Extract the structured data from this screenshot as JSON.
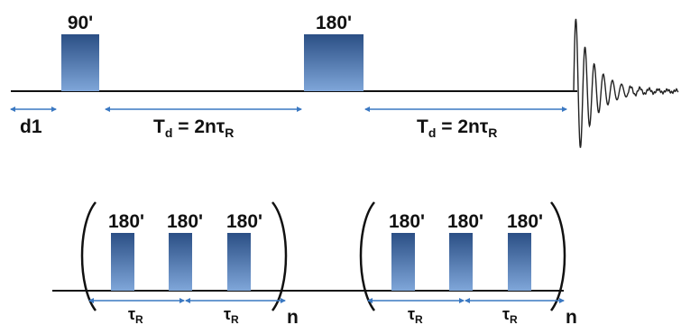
{
  "colors": {
    "baseline": "#111111",
    "pulse_top": "#2b4f85",
    "pulse_bottom": "#7fa6d9",
    "arrow": "#3a78c2",
    "fid": "#222222"
  },
  "top_sequence": {
    "pulse_90_label": "90'",
    "pulse_180_label": "180'",
    "d1_label": "d1",
    "delay_1": {
      "main": "T",
      "sub1": "d",
      "mid": " = 2nτ",
      "sub2": "R"
    },
    "delay_2": {
      "main": "T",
      "sub1": "d",
      "mid": " = 2nτ",
      "sub2": "R"
    }
  },
  "bottom_sequences": [
    {
      "pulse_labels": [
        "180'",
        "180'",
        "180'"
      ],
      "tau_labels": [
        {
          "main": "τ",
          "sub": "R"
        },
        {
          "main": "τ",
          "sub": "R"
        }
      ],
      "repeat_label": "n"
    },
    {
      "pulse_labels": [
        "180'",
        "180'",
        "180'"
      ],
      "tau_labels": [
        {
          "main": "τ",
          "sub": "R"
        },
        {
          "main": "τ",
          "sub": "R"
        }
      ],
      "repeat_label": "n"
    }
  ]
}
